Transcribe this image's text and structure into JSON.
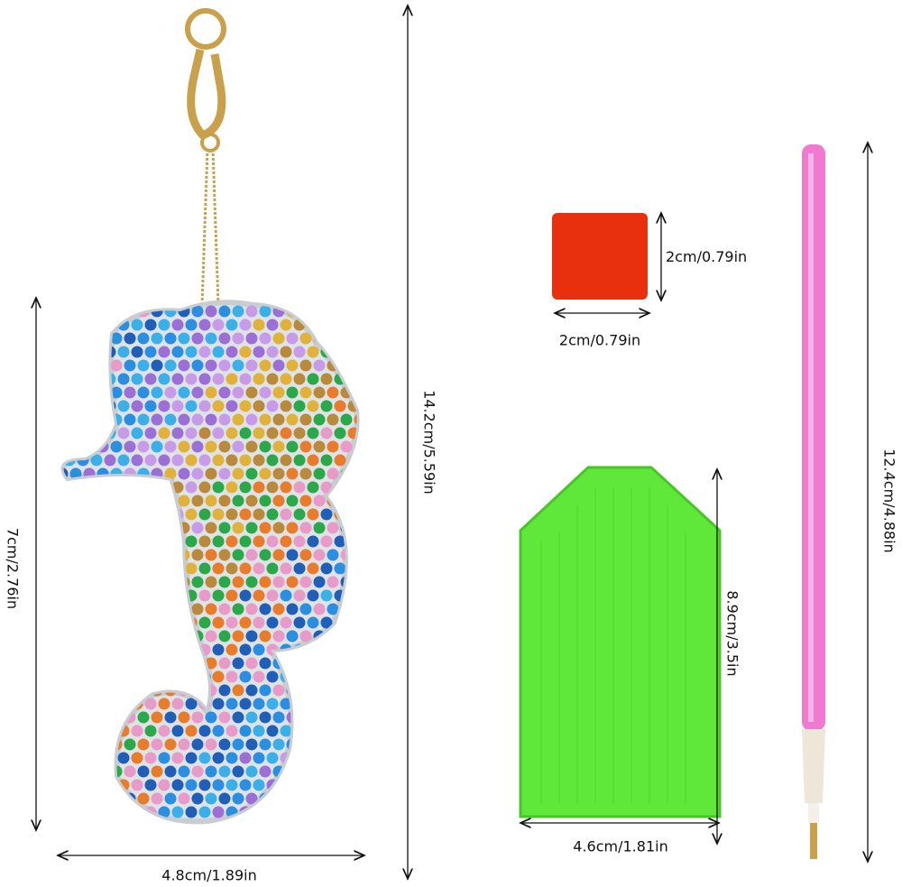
{
  "dimensions": {
    "keychain_total_height": "14.2cm/5.59in",
    "seahorse_height": "7cm/2.76in",
    "seahorse_width": "4.8cm/1.89in",
    "wax_height": "2cm/0.79in",
    "wax_width": "2cm/0.79in",
    "tray_height": "8.9cm/3.5in",
    "tray_width": "4.6cm/1.81in",
    "pen_length": "12.4cm/4.88in"
  },
  "colors": {
    "wax": "#e8300e",
    "tray": "#5fe83a",
    "pen": "#f07ad0",
    "chain": "#c9a14a",
    "arrow": "#111111",
    "gems": [
      "#2a8fe0",
      "#3bb0e8",
      "#9b6fd6",
      "#c79be8",
      "#e0b23a",
      "#b98a3c",
      "#2aa84a",
      "#e87c2a",
      "#e89ac8",
      "#1f5fb8"
    ]
  }
}
